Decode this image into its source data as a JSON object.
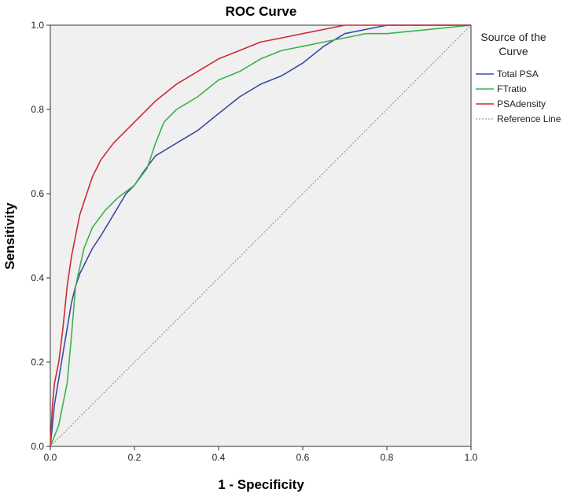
{
  "chart_data": {
    "type": "line",
    "title": "ROC Curve",
    "xlabel": "1 - Specificity",
    "ylabel": "Sensitivity",
    "xlim": [
      0,
      1
    ],
    "ylim": [
      0,
      1
    ],
    "xticks": [
      "0.0",
      "0.2",
      "0.4",
      "0.6",
      "0.8",
      "1.0"
    ],
    "yticks": [
      "0.0",
      "0.2",
      "0.4",
      "0.6",
      "0.8",
      "1.0"
    ],
    "grid": false,
    "plot_background": "#f0f0f0",
    "legend": {
      "title_lines": [
        "Source of the",
        "Curve"
      ],
      "position": "right"
    },
    "series": [
      {
        "name": "Total PSA",
        "color": "#3b4ba6",
        "x": [
          0,
          0.01,
          0.02,
          0.03,
          0.04,
          0.05,
          0.06,
          0.07,
          0.08,
          0.1,
          0.12,
          0.15,
          0.18,
          0.2,
          0.22,
          0.25,
          0.3,
          0.35,
          0.4,
          0.45,
          0.5,
          0.55,
          0.6,
          0.65,
          0.7,
          0.75,
          0.8,
          0.9,
          1.0
        ],
        "y": [
          0,
          0.1,
          0.16,
          0.22,
          0.28,
          0.34,
          0.38,
          0.41,
          0.43,
          0.47,
          0.5,
          0.55,
          0.6,
          0.62,
          0.65,
          0.69,
          0.72,
          0.75,
          0.79,
          0.83,
          0.86,
          0.88,
          0.91,
          0.95,
          0.98,
          0.99,
          1.0,
          1.0,
          1.0
        ]
      },
      {
        "name": "FTratio",
        "color": "#3bb24a",
        "x": [
          0,
          0.02,
          0.03,
          0.04,
          0.05,
          0.06,
          0.08,
          0.1,
          0.13,
          0.16,
          0.2,
          0.23,
          0.25,
          0.27,
          0.3,
          0.35,
          0.4,
          0.45,
          0.5,
          0.55,
          0.6,
          0.65,
          0.7,
          0.75,
          0.8,
          0.9,
          1.0
        ],
        "y": [
          0,
          0.05,
          0.1,
          0.15,
          0.26,
          0.38,
          0.47,
          0.52,
          0.56,
          0.59,
          0.62,
          0.66,
          0.72,
          0.77,
          0.8,
          0.83,
          0.87,
          0.89,
          0.92,
          0.94,
          0.95,
          0.96,
          0.97,
          0.98,
          0.98,
          0.99,
          1.0
        ]
      },
      {
        "name": "PSAdensity",
        "color": "#cc2a36",
        "x": [
          0,
          0.005,
          0.01,
          0.02,
          0.03,
          0.04,
          0.05,
          0.06,
          0.07,
          0.08,
          0.1,
          0.12,
          0.15,
          0.18,
          0.2,
          0.25,
          0.3,
          0.35,
          0.4,
          0.45,
          0.5,
          0.55,
          0.6,
          0.65,
          0.7,
          0.8,
          0.9,
          1.0
        ],
        "y": [
          0,
          0.1,
          0.15,
          0.2,
          0.28,
          0.38,
          0.45,
          0.5,
          0.55,
          0.58,
          0.64,
          0.68,
          0.72,
          0.75,
          0.77,
          0.82,
          0.86,
          0.89,
          0.92,
          0.94,
          0.96,
          0.97,
          0.98,
          0.99,
          1.0,
          1.0,
          1.0,
          1.0
        ]
      },
      {
        "name": "Reference Line",
        "color": "#888888",
        "dashed": true,
        "x": [
          0,
          1
        ],
        "y": [
          0,
          1
        ]
      }
    ]
  }
}
